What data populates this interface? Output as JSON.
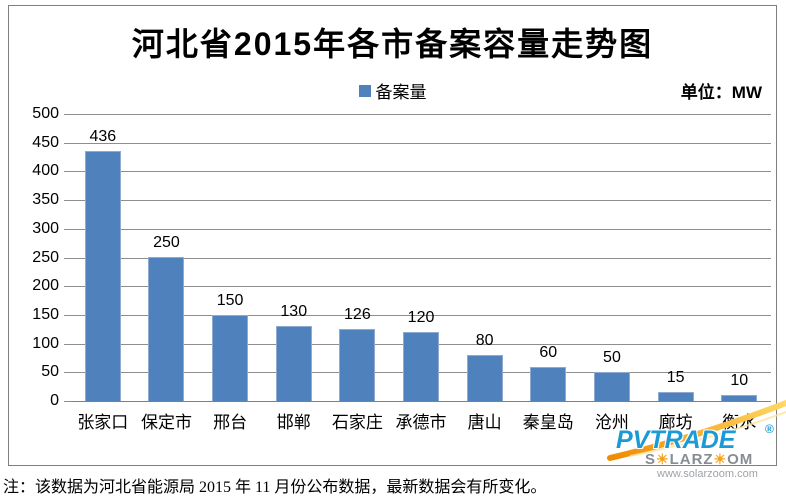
{
  "title": "河北省2015年各市备案容量走势图",
  "legend": {
    "label": "备案量",
    "marker_color": "#4F81BD"
  },
  "unit_label": "单位：MW",
  "chart_data": {
    "type": "bar",
    "title": "河北省2015年各市备案容量走势图",
    "series_name": "备案量",
    "categories": [
      "张家口",
      "保定市",
      "邢台",
      "邯郸",
      "石家庄",
      "承德市",
      "唐山",
      "秦皇岛",
      "沧州",
      "廊坊",
      "衡水"
    ],
    "values": [
      436,
      250,
      150,
      130,
      126,
      120,
      80,
      60,
      50,
      15,
      10
    ],
    "unit": "MW",
    "ylim": [
      0,
      500
    ],
    "yticks": [
      0,
      50,
      100,
      150,
      200,
      250,
      300,
      350,
      400,
      450,
      500
    ],
    "grid": true,
    "legend_position": "top-center",
    "bar_color": "#4F81BD",
    "bar_border_color": "#8FAAD1",
    "gridline_color": "#8e8e8e"
  },
  "footer_note": "注：该数据为河北省能源局 2015 年 11 月份公布数据，最新数据会有所变化。",
  "watermark": {
    "brand": "PVTRADE",
    "registered_mark": "®",
    "sub_brand_part1": "S",
    "sub_brand_part2": "LARZ",
    "sub_brand_part3": "OM",
    "sun_char": "☀",
    "url": "www.solarzoom.com",
    "brand_color": "#1B9AD6",
    "sun_color": "#F6A21C",
    "swoosh_color_start": "#F08C00",
    "swoosh_color_end": "#FFD966"
  }
}
